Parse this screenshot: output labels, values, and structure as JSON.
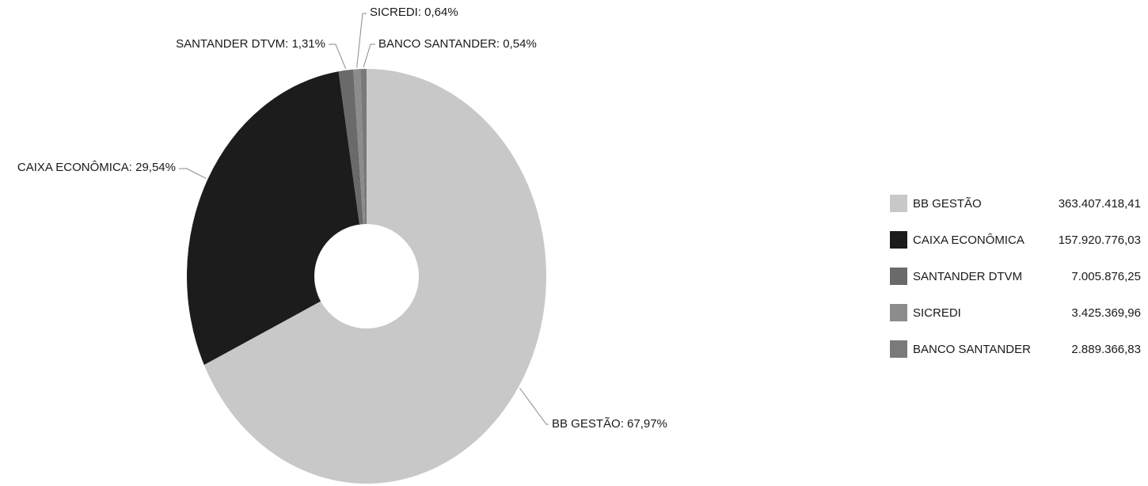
{
  "chart_data": {
    "type": "pie",
    "variant": "donut",
    "title": "",
    "legend_position": "right",
    "slices": [
      {
        "name": "BB GESTÃO",
        "value": 363407418.41,
        "value_label": "363.407.418,41",
        "percent": 67.97,
        "slice_label": "BB GESTÃO: 67,97%",
        "color": "#c8c8c8"
      },
      {
        "name": "CAIXA ECONÔMICA",
        "value": 157920776.03,
        "value_label": "157.920.776,03",
        "percent": 29.54,
        "slice_label": "CAIXA ECONÔMICA: 29,54%",
        "color": "#1c1c1c"
      },
      {
        "name": "SANTANDER DTVM",
        "value": 7005876.25,
        "value_label": "7.005.876,25",
        "percent": 1.31,
        "slice_label": "SANTANDER DTVM: 1,31%",
        "color": "#6a6a6a"
      },
      {
        "name": "SICREDI",
        "value": 3425369.96,
        "value_label": "3.425.369,96",
        "percent": 0.64,
        "slice_label": "SICREDI: 0,64%",
        "color": "#8c8c8c"
      },
      {
        "name": "BANCO SANTANDER",
        "value": 2889366.83,
        "value_label": "2.889.366,83",
        "percent": 0.54,
        "slice_label": "BANCO SANTANDER: 0,54%",
        "color": "#7a7a7a"
      }
    ]
  }
}
